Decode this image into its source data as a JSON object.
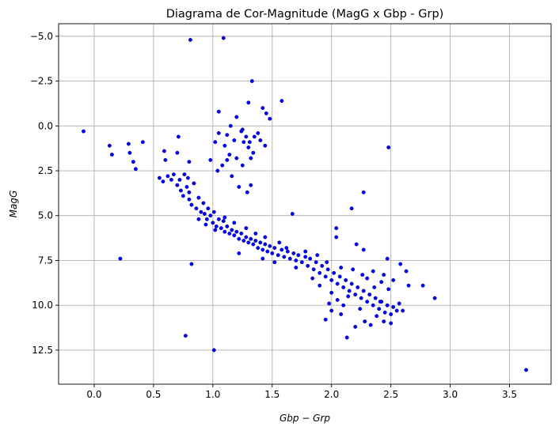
{
  "chart_data": {
    "type": "scatter",
    "title": "Diagrama de Cor-Magnitude (MagG x Gbp - Grp)",
    "xlabel": "Gbp − Grp",
    "ylabel": "MagG",
    "xlim": [
      -0.3,
      3.85
    ],
    "ylim": [
      14.4,
      -5.7
    ],
    "y_inverted": true,
    "grid": true,
    "marker_color": "#0000ff",
    "marker_edge": "#00007a",
    "x_ticks": [
      {
        "value": 0.0,
        "label": "0.0"
      },
      {
        "value": 0.5,
        "label": "0.5"
      },
      {
        "value": 1.0,
        "label": "1.0"
      },
      {
        "value": 1.5,
        "label": "1.5"
      },
      {
        "value": 2.0,
        "label": "2.0"
      },
      {
        "value": 2.5,
        "label": "2.5"
      },
      {
        "value": 3.0,
        "label": "3.0"
      },
      {
        "value": 3.5,
        "label": "3.5"
      }
    ],
    "y_ticks": [
      {
        "value": -5.0,
        "label": "−5.0"
      },
      {
        "value": -2.5,
        "label": "−2.5"
      },
      {
        "value": 0.0,
        "label": "0.0"
      },
      {
        "value": 2.5,
        "label": "2.5"
      },
      {
        "value": 5.0,
        "label": "5.0"
      },
      {
        "value": 7.5,
        "label": "7.5"
      },
      {
        "value": 10.0,
        "label": "10.0"
      },
      {
        "value": 12.5,
        "label": "12.5"
      }
    ],
    "points": [
      [
        0.81,
        -4.8
      ],
      [
        1.09,
        -4.9
      ],
      [
        1.33,
        -2.5
      ],
      [
        1.3,
        -1.3
      ],
      [
        1.42,
        -1.0
      ],
      [
        1.58,
        -1.4
      ],
      [
        1.05,
        -0.8
      ],
      [
        1.2,
        -0.5
      ],
      [
        1.45,
        -0.7
      ],
      [
        1.48,
        -0.4
      ],
      [
        1.15,
        0.0
      ],
      [
        1.25,
        0.2
      ],
      [
        1.38,
        0.4
      ],
      [
        1.05,
        0.4
      ],
      [
        1.02,
        0.9
      ],
      [
        1.1,
        1.1
      ],
      [
        1.18,
        0.8
      ],
      [
        1.28,
        0.6
      ],
      [
        1.31,
        0.9
      ],
      [
        1.35,
        0.6
      ],
      [
        1.24,
        0.3
      ],
      [
        1.12,
        0.5
      ],
      [
        1.34,
        1.5
      ],
      [
        1.14,
        1.6
      ],
      [
        1.12,
        1.9
      ],
      [
        1.2,
        1.8
      ],
      [
        1.08,
        2.2
      ],
      [
        1.04,
        2.5
      ],
      [
        1.16,
        2.8
      ],
      [
        1.25,
        2.2
      ],
      [
        1.32,
        1.8
      ],
      [
        1.22,
        3.4
      ],
      [
        1.29,
        3.7
      ],
      [
        1.32,
        3.3
      ],
      [
        1.44,
        1.1
      ],
      [
        1.3,
        1.2
      ],
      [
        1.26,
        0.9
      ],
      [
        1.4,
        0.8
      ],
      [
        -0.09,
        0.3
      ],
      [
        0.13,
        1.1
      ],
      [
        0.15,
        1.6
      ],
      [
        0.29,
        1.0
      ],
      [
        0.3,
        1.5
      ],
      [
        0.33,
        2.0
      ],
      [
        0.35,
        2.4
      ],
      [
        0.41,
        0.9
      ],
      [
        0.22,
        7.4
      ],
      [
        0.82,
        7.7
      ],
      [
        0.77,
        11.7
      ],
      [
        1.01,
        12.5
      ],
      [
        0.71,
        0.6
      ],
      [
        0.59,
        1.4
      ],
      [
        0.6,
        1.9
      ],
      [
        0.7,
        1.5
      ],
      [
        0.8,
        2.0
      ],
      [
        0.98,
        1.9
      ],
      [
        2.48,
        1.2
      ],
      [
        2.27,
        3.7
      ],
      [
        1.67,
        4.9
      ],
      [
        2.17,
        4.6
      ],
      [
        2.04,
        5.7
      ],
      [
        2.04,
        6.2
      ],
      [
        2.21,
        6.6
      ],
      [
        2.27,
        6.9
      ],
      [
        2.47,
        7.4
      ],
      [
        2.58,
        7.7
      ],
      [
        2.63,
        8.1
      ],
      [
        2.65,
        8.9
      ],
      [
        2.77,
        8.9
      ],
      [
        2.87,
        9.6
      ],
      [
        3.64,
        13.6
      ],
      [
        2.41,
        9.8
      ],
      [
        0.55,
        2.9
      ],
      [
        0.58,
        3.1
      ],
      [
        0.62,
        2.8
      ],
      [
        0.65,
        3.0
      ],
      [
        0.67,
        2.7
      ],
      [
        0.7,
        3.3
      ],
      [
        0.72,
        3.0
      ],
      [
        0.73,
        3.6
      ],
      [
        0.75,
        3.9
      ],
      [
        0.76,
        2.7
      ],
      [
        0.78,
        3.4
      ],
      [
        0.79,
        2.9
      ],
      [
        0.8,
        3.7
      ],
      [
        0.8,
        4.1
      ],
      [
        0.82,
        4.4
      ],
      [
        0.84,
        3.2
      ],
      [
        0.86,
        4.6
      ],
      [
        0.88,
        4.0
      ],
      [
        0.9,
        4.8
      ],
      [
        0.92,
        4.3
      ],
      [
        0.93,
        4.9
      ],
      [
        0.95,
        5.2
      ],
      [
        0.96,
        4.6
      ],
      [
        0.98,
        5.0
      ],
      [
        1.0,
        5.4
      ],
      [
        1.01,
        4.8
      ],
      [
        1.03,
        5.6
      ],
      [
        1.05,
        5.2
      ],
      [
        1.07,
        5.7
      ],
      [
        1.09,
        5.3
      ],
      [
        1.1,
        5.9
      ],
      [
        1.12,
        5.6
      ],
      [
        1.14,
        6.0
      ],
      [
        1.16,
        5.8
      ],
      [
        1.18,
        6.1
      ],
      [
        1.2,
        5.9
      ],
      [
        1.22,
        6.3
      ],
      [
        1.24,
        6.0
      ],
      [
        1.26,
        6.4
      ],
      [
        1.28,
        6.2
      ],
      [
        1.3,
        6.5
      ],
      [
        1.32,
        6.3
      ],
      [
        1.34,
        6.6
      ],
      [
        1.36,
        6.4
      ],
      [
        1.38,
        6.8
      ],
      [
        1.4,
        6.5
      ],
      [
        1.42,
        6.9
      ],
      [
        1.44,
        6.6
      ],
      [
        1.46,
        7.0
      ],
      [
        1.48,
        6.7
      ],
      [
        1.5,
        7.1
      ],
      [
        1.52,
        6.8
      ],
      [
        1.55,
        7.2
      ],
      [
        1.58,
        6.9
      ],
      [
        1.6,
        7.3
      ],
      [
        1.63,
        7.0
      ],
      [
        1.65,
        7.4
      ],
      [
        1.68,
        7.1
      ],
      [
        1.7,
        7.5
      ],
      [
        1.72,
        7.2
      ],
      [
        1.75,
        7.6
      ],
      [
        1.78,
        7.3
      ],
      [
        1.8,
        7.8
      ],
      [
        1.82,
        7.4
      ],
      [
        1.85,
        8.0
      ],
      [
        1.87,
        7.6
      ],
      [
        1.9,
        8.2
      ],
      [
        1.92,
        7.8
      ],
      [
        1.95,
        8.4
      ],
      [
        1.97,
        8.0
      ],
      [
        2.0,
        8.6
      ],
      [
        2.02,
        8.2
      ],
      [
        2.05,
        8.8
      ],
      [
        2.07,
        8.4
      ],
      [
        2.1,
        9.0
      ],
      [
        2.12,
        8.6
      ],
      [
        2.15,
        9.2
      ],
      [
        2.17,
        8.8
      ],
      [
        2.2,
        9.4
      ],
      [
        2.22,
        9.0
      ],
      [
        2.25,
        9.6
      ],
      [
        2.27,
        9.2
      ],
      [
        2.3,
        9.8
      ],
      [
        2.32,
        9.4
      ],
      [
        2.35,
        10.0
      ],
      [
        2.37,
        9.6
      ],
      [
        2.4,
        10.2
      ],
      [
        2.42,
        9.8
      ],
      [
        2.45,
        10.4
      ],
      [
        2.47,
        10.0
      ],
      [
        2.5,
        10.5
      ],
      [
        2.52,
        10.1
      ],
      [
        2.55,
        10.3
      ],
      [
        2.57,
        9.9
      ],
      [
        2.6,
        10.3
      ],
      [
        1.98,
        9.9
      ],
      [
        2.0,
        10.3
      ],
      [
        1.95,
        10.8
      ],
      [
        2.08,
        10.5
      ],
      [
        2.13,
        11.8
      ],
      [
        2.2,
        11.2
      ],
      [
        2.28,
        10.9
      ],
      [
        2.33,
        11.1
      ],
      [
        2.38,
        10.6
      ],
      [
        2.44,
        10.9
      ],
      [
        2.5,
        11.0
      ],
      [
        2.1,
        10.0
      ],
      [
        2.24,
        10.2
      ],
      [
        2.14,
        9.5
      ],
      [
        2.05,
        9.7
      ],
      [
        2.3,
        8.5
      ],
      [
        2.42,
        8.7
      ],
      [
        2.48,
        9.1
      ],
      [
        2.36,
        9.0
      ],
      [
        2.26,
        8.3
      ],
      [
        2.18,
        8.0
      ],
      [
        2.08,
        7.9
      ],
      [
        1.96,
        7.6
      ],
      [
        1.88,
        7.2
      ],
      [
        1.78,
        7.0
      ],
      [
        1.62,
        6.8
      ],
      [
        1.56,
        6.5
      ],
      [
        1.44,
        6.2
      ],
      [
        1.36,
        6.0
      ],
      [
        1.28,
        5.7
      ],
      [
        1.18,
        5.4
      ],
      [
        1.1,
        5.1
      ],
      [
        1.02,
        5.8
      ],
      [
        0.94,
        5.5
      ],
      [
        0.88,
        5.2
      ],
      [
        1.42,
        7.4
      ],
      [
        1.22,
        7.1
      ],
      [
        1.52,
        7.6
      ],
      [
        1.7,
        7.9
      ],
      [
        1.84,
        8.5
      ],
      [
        1.9,
        8.9
      ],
      [
        2.0,
        9.3
      ],
      [
        2.35,
        8.1
      ],
      [
        2.44,
        8.3
      ],
      [
        2.52,
        8.6
      ]
    ]
  }
}
